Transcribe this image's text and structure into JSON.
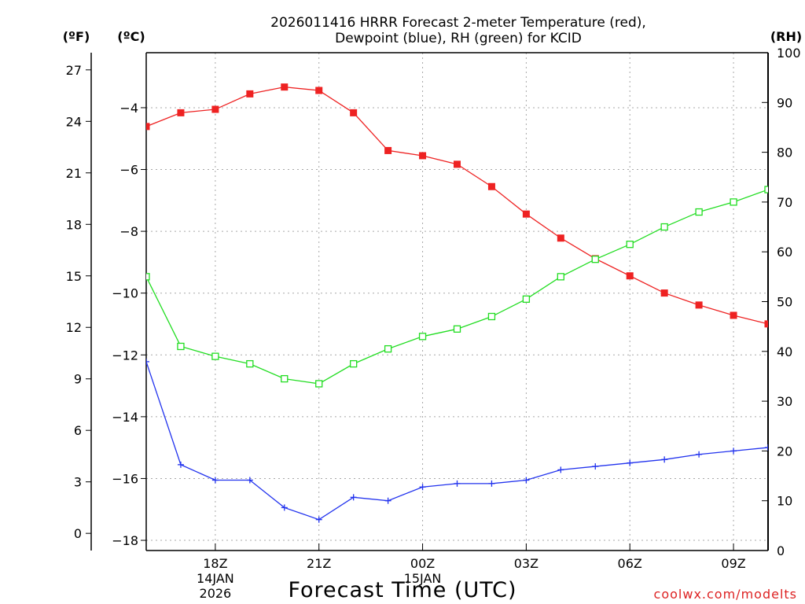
{
  "chart_data": {
    "type": "line",
    "title": [
      "2026011416 HRRR Forecast 2-meter Temperature (red),",
      "Dewpoint (blue), RH (green) for KCID"
    ],
    "xlabel": "Forecast Time (UTC)",
    "watermark": "coolwx.com/modelts",
    "x": [
      16,
      17,
      18,
      19,
      20,
      21,
      22,
      23,
      24,
      25,
      26,
      27,
      28,
      29,
      30,
      31,
      32,
      33,
      34
    ],
    "xlim": [
      16,
      34
    ],
    "x_ticks": [
      {
        "x": 18,
        "lines": [
          "18Z",
          "14JAN",
          "2026"
        ]
      },
      {
        "x": 21,
        "lines": [
          "21Z"
        ]
      },
      {
        "x": 24,
        "lines": [
          "00Z",
          "15JAN"
        ]
      },
      {
        "x": 27,
        "lines": [
          "03Z"
        ]
      },
      {
        "x": 30,
        "lines": [
          "06Z"
        ]
      },
      {
        "x": 33,
        "lines": [
          "09Z"
        ]
      }
    ],
    "axes": {
      "fahrenheit": {
        "unit_label": "(ºF)",
        "range": [
          -1,
          28
        ],
        "ticks": [
          "0",
          "3",
          "6",
          "9",
          "12",
          "15",
          "18",
          "21",
          "24",
          "27"
        ]
      },
      "celsius": {
        "unit_label": "(ºC)",
        "range": [
          -18.33,
          -2.22
        ],
        "ticks": [
          "-18",
          "-16",
          "-14",
          "-12",
          "-10",
          "-8",
          "-6",
          "-4"
        ]
      },
      "rh": {
        "unit_label": "(RH)",
        "range": [
          0,
          100
        ],
        "ticks": [
          "0",
          "10",
          "20",
          "30",
          "40",
          "50",
          "60",
          "70",
          "80",
          "90",
          "100"
        ]
      }
    },
    "grid": true,
    "series": [
      {
        "name": "2-meter Temperature",
        "axis": "fahrenheit",
        "color": "#ee2222",
        "marker": "filled-square",
        "values": [
          23.7,
          24.5,
          24.7,
          25.6,
          26.0,
          25.8,
          24.5,
          22.3,
          22.0,
          21.5,
          20.2,
          18.6,
          17.2,
          16.0,
          15.0,
          14.0,
          13.3,
          12.7,
          12.2
        ]
      },
      {
        "name": "Dewpoint",
        "axis": "fahrenheit",
        "color": "#2233ee",
        "marker": "plus",
        "values": [
          10.0,
          4.0,
          3.1,
          3.1,
          1.5,
          0.8,
          2.1,
          1.9,
          2.7,
          2.9,
          2.9,
          3.1,
          3.7,
          3.9,
          4.1,
          4.3,
          4.6,
          4.8,
          5.0
        ]
      },
      {
        "name": "RH",
        "axis": "rh",
        "color": "#22dd22",
        "marker": "open-square",
        "values": [
          55,
          41,
          39,
          37.5,
          34.5,
          33.5,
          37.5,
          40.5,
          43,
          44.5,
          47,
          50.5,
          55,
          58.5,
          61.5,
          65,
          68,
          70,
          72.5
        ]
      }
    ]
  }
}
